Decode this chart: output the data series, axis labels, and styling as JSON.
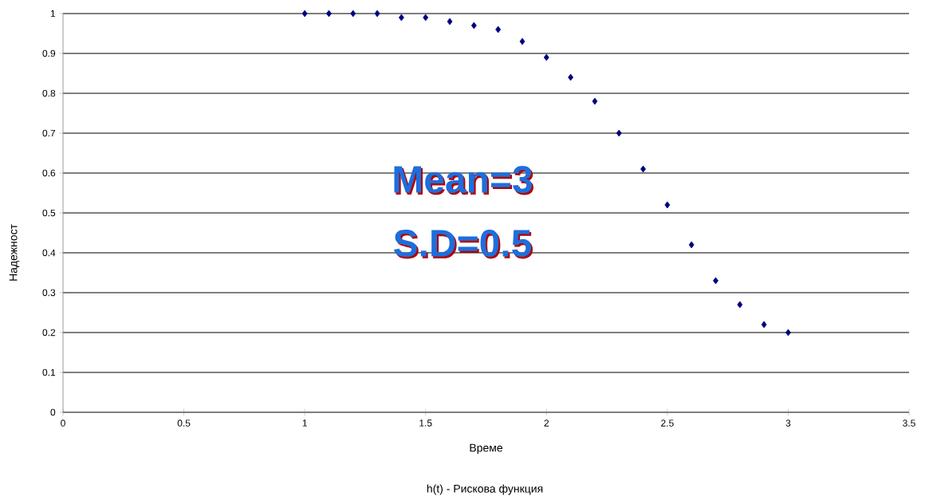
{
  "chart_data": {
    "type": "scatter",
    "xlabel": "Време",
    "ylabel": "Надежност",
    "annotations": [
      "Mean=3",
      "S.D=0.5",
      "h(t) - Рискова функция"
    ],
    "x": [
      1.0,
      1.1,
      1.2,
      1.3,
      1.4,
      1.5,
      1.6,
      1.7,
      1.8,
      1.9,
      2.0,
      2.1,
      2.2,
      2.3,
      2.4,
      2.5,
      2.6,
      2.7,
      2.8,
      2.9,
      3.0
    ],
    "values": [
      1.0,
      1.0,
      1.0,
      1.0,
      0.99,
      0.99,
      0.98,
      0.97,
      0.96,
      0.93,
      0.89,
      0.84,
      0.78,
      0.7,
      0.61,
      0.52,
      0.42,
      0.33,
      0.27,
      0.22,
      0.2
    ],
    "color": "#00007f",
    "marker": "diamond",
    "grid": "y",
    "xlim": [
      0,
      3.5
    ],
    "xticks": [
      0,
      0.5,
      1,
      1.5,
      2,
      2.5,
      3,
      3.5
    ],
    "ylim": [
      0,
      1
    ],
    "yticks": [
      0,
      0.1,
      0.2,
      0.3,
      0.4,
      0.5,
      0.6,
      0.7,
      0.8,
      0.9,
      1
    ]
  }
}
